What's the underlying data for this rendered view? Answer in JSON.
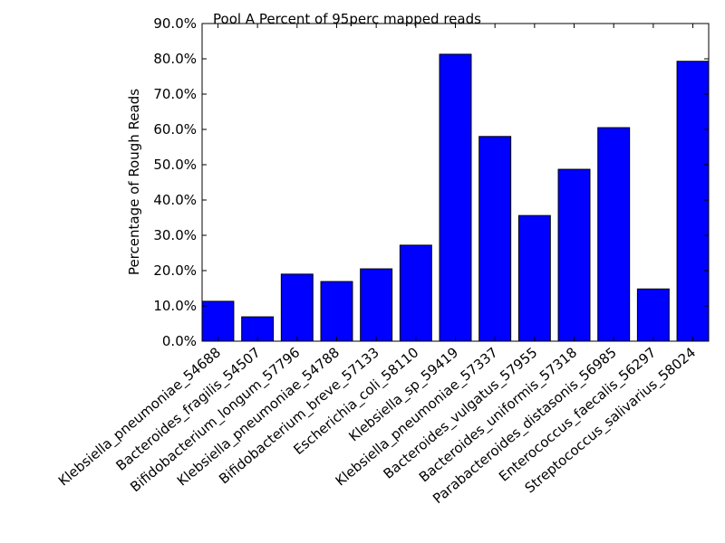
{
  "chart_data": {
    "type": "bar",
    "title": "Pool A Percent of 95perc mapped reads",
    "xlabel": "",
    "ylabel": "Percentage of Rough Reads",
    "categories": [
      "Klebsiella_pneumoniae_54688",
      "Bacteroides_fragilis_54507",
      "Bifidobacterium_longum_57796",
      "Klebsiella_pneumoniae_54788",
      "Bifidobacterium_breve_57133",
      "Escherichia_coli_58110",
      "Klebsiella_sp_59419",
      "Klebsiella_pneumoniae_57337",
      "Bacteroides_vulgatus_57955",
      "Bacteroides_uniformis_57318",
      "Parabacteroides_distasonis_56985",
      "Enterococcus_faecalis_56297",
      "Streptococcus_salivarius_58024"
    ],
    "values": [
      11.3,
      6.9,
      19.0,
      16.9,
      20.5,
      27.2,
      81.3,
      58.0,
      35.6,
      48.7,
      60.5,
      14.8,
      79.3
    ],
    "ylim": [
      0,
      90
    ],
    "yticks": [
      0,
      10,
      20,
      30,
      40,
      50,
      60,
      70,
      80,
      90
    ],
    "ytick_labels": [
      "0.0%",
      "10.0%",
      "20.0%",
      "30.0%",
      "40.0%",
      "50.0%",
      "60.0%",
      "70.0%",
      "80.0%",
      "90.0%"
    ],
    "bar_color": "#0000ff",
    "edge_color": "#000000",
    "grid": false,
    "legend": "none"
  }
}
